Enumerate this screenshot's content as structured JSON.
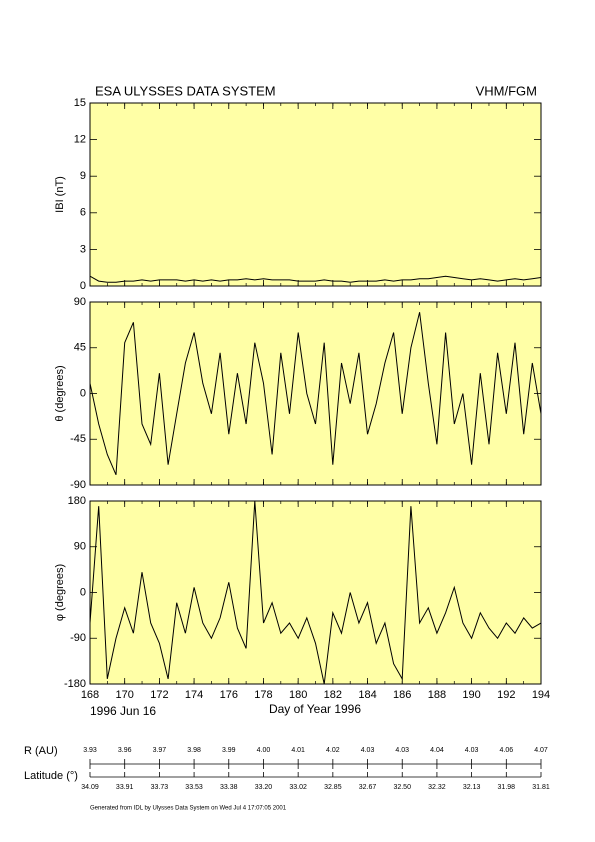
{
  "chart_data": [
    {
      "type": "line",
      "title": "ESA ULYSSES DATA SYSTEM",
      "instrument": "VHM/FGM",
      "ylabel": "IBI (nT)",
      "xlim": [
        168,
        194
      ],
      "ylim": [
        0,
        15
      ],
      "yticks": [
        0,
        3,
        6,
        9,
        12,
        15
      ],
      "x": [
        168,
        168.5,
        169,
        169.5,
        170,
        170.5,
        171,
        171.5,
        172,
        172.5,
        173,
        173.5,
        174,
        174.5,
        175,
        175.5,
        176,
        176.5,
        177,
        177.5,
        178,
        178.5,
        179,
        179.5,
        180,
        180.5,
        181,
        181.5,
        182,
        182.5,
        183,
        183.5,
        184,
        184.5,
        185,
        185.5,
        186,
        186.5,
        187,
        187.5,
        188,
        188.5,
        189,
        189.5,
        190,
        190.5,
        191,
        191.5,
        192,
        192.5,
        193,
        193.5,
        194
      ],
      "series": [
        {
          "color": "#000000",
          "values": [
            0.8,
            0.4,
            0.3,
            0.3,
            0.4,
            0.4,
            0.5,
            0.4,
            0.5,
            0.5,
            0.5,
            0.4,
            0.5,
            0.4,
            0.5,
            0.4,
            0.5,
            0.5,
            0.6,
            0.5,
            0.6,
            0.5,
            0.5,
            0.5,
            0.4,
            0.4,
            0.4,
            0.5,
            0.4,
            0.4,
            0.3,
            0.4,
            0.4,
            0.4,
            0.5,
            0.4,
            0.5,
            0.5,
            0.6,
            0.6,
            0.7,
            0.8,
            0.7,
            0.6,
            0.5,
            0.6,
            0.5,
            0.4,
            0.5,
            0.6,
            0.5,
            0.6,
            0.7
          ]
        }
      ]
    },
    {
      "type": "line",
      "ylabel": "θ (degrees)",
      "xlim": [
        168,
        194
      ],
      "ylim": [
        -90,
        90
      ],
      "yticks": [
        -90,
        -45,
        0,
        45,
        90
      ],
      "x": [
        168,
        168.5,
        169,
        169.5,
        170,
        170.5,
        171,
        171.5,
        172,
        172.5,
        173,
        173.5,
        174,
        174.5,
        175,
        175.5,
        176,
        176.5,
        177,
        177.5,
        178,
        178.5,
        179,
        179.5,
        180,
        180.5,
        181,
        181.5,
        182,
        182.5,
        183,
        183.5,
        184,
        184.5,
        185,
        185.5,
        186,
        186.5,
        187,
        187.5,
        188,
        188.5,
        189,
        189.5,
        190,
        190.5,
        191,
        191.5,
        192,
        192.5,
        193,
        193.5,
        194
      ],
      "series": [
        {
          "color": "#000000",
          "values": [
            10,
            -30,
            -60,
            -80,
            50,
            70,
            -30,
            -50,
            20,
            -70,
            -20,
            30,
            60,
            10,
            -20,
            40,
            -40,
            20,
            -30,
            50,
            10,
            -60,
            40,
            -20,
            60,
            0,
            -30,
            50,
            -70,
            30,
            -10,
            40,
            -40,
            -10,
            30,
            60,
            -20,
            45,
            80,
            10,
            -50,
            60,
            -30,
            0,
            -70,
            20,
            -50,
            40,
            -20,
            50,
            -40,
            30,
            -20
          ]
        }
      ]
    },
    {
      "type": "line",
      "ylabel": "φ (degrees)",
      "xlabel": "Day of Year 1996",
      "start_date": "1996 Jun 16",
      "xlim": [
        168,
        194
      ],
      "xticks": [
        168,
        170,
        172,
        174,
        176,
        178,
        180,
        182,
        184,
        186,
        188,
        190,
        192,
        194
      ],
      "ylim": [
        -180,
        180
      ],
      "yticks": [
        -180,
        -90,
        0,
        90,
        180
      ],
      "x": [
        168,
        168.5,
        169,
        169.5,
        170,
        170.5,
        171,
        171.5,
        172,
        172.5,
        173,
        173.5,
        174,
        174.5,
        175,
        175.5,
        176,
        176.5,
        177,
        177.5,
        178,
        178.5,
        179,
        179.5,
        180,
        180.5,
        181,
        181.5,
        182,
        182.5,
        183,
        183.5,
        184,
        184.5,
        185,
        185.5,
        186,
        186.5,
        187,
        187.5,
        188,
        188.5,
        189,
        189.5,
        190,
        190.5,
        191,
        191.5,
        192,
        192.5,
        193,
        193.5,
        194
      ],
      "series": [
        {
          "color": "#000000",
          "values": [
            -60,
            170,
            -170,
            -90,
            -30,
            -80,
            40,
            -60,
            -100,
            -170,
            -20,
            -80,
            10,
            -60,
            -90,
            -50,
            20,
            -70,
            -110,
            180,
            -60,
            -20,
            -80,
            -60,
            -90,
            -50,
            -100,
            -180,
            -40,
            -80,
            0,
            -60,
            -20,
            -100,
            -60,
            -140,
            -170,
            170,
            -60,
            -30,
            -80,
            -40,
            10,
            -60,
            -90,
            -40,
            -70,
            -90,
            -60,
            -80,
            -50,
            -70,
            -60
          ]
        }
      ]
    }
  ],
  "orbit": {
    "r_label": "R (AU)",
    "r_values": [
      "3.93",
      "3.96",
      "3.97",
      "3.98",
      "3.99",
      "4.00",
      "4.01",
      "4.02",
      "4.03",
      "4.03",
      "4.04",
      "4.03",
      "4.06",
      "4.07"
    ],
    "lat_label": "Latitude (°)",
    "lat_values": [
      "34.09",
      "33.91",
      "33.73",
      "33.53",
      "33.38",
      "33.20",
      "33.02",
      "32.85",
      "32.67",
      "32.50",
      "32.32",
      "32.13",
      "31.98",
      "31.81"
    ]
  },
  "footer": "Generated from IDL by Ulysses Data System on Wed Jul 4 17:07:05 2001"
}
